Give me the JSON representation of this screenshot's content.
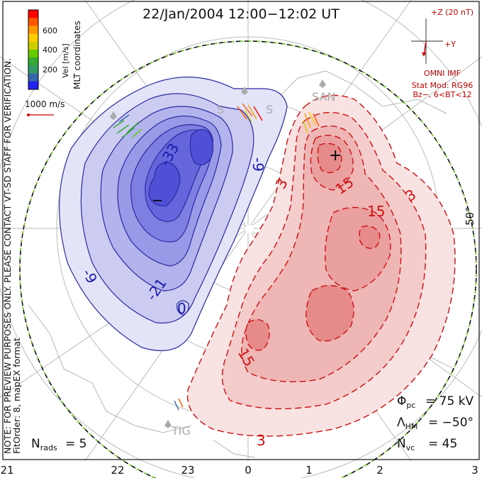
{
  "title": "22/Jan/2004 12:00−12:02 UT",
  "side_note": "NOTE: FOR PREVIEW PURPOSES ONLY. PLEASE CONTACT VT-SD STAFF FOR VERIFICATION.",
  "fit_label": "FitOrder: 8, mapEX format",
  "coord_label": "MLT coordinates",
  "velocity_scale": {
    "axis_label": "Vel [m/s]",
    "ticks": [
      "600",
      "400",
      "200"
    ],
    "colors": [
      "#ff0000",
      "#ff5500",
      "#ff9900",
      "#ffcc00",
      "#cccc00",
      "#66cc00",
      "#33aa33",
      "#339966",
      "#3366aa",
      "#2222ee"
    ]
  },
  "vector_ref": {
    "label": "1000 m/s",
    "color": "#cc0000"
  },
  "imf": {
    "z_label": "+Z (20 nT)",
    "y_label": "+Y",
    "source": "OMNI IMF",
    "model_line1": "Stat Mod: RG96",
    "model_line2": "Bz−, 6<BT<12",
    "color": "#cc0000"
  },
  "lat_label": "50°",
  "contour_labels": {
    "neg": [
      "-33",
      "-9",
      "-9",
      "-21",
      "0"
    ],
    "pos": [
      "3",
      "15",
      "3",
      "15",
      "15",
      "3"
    ]
  },
  "pole_markers": {
    "min": "−",
    "max": "+"
  },
  "stations": [
    "TIG",
    "S",
    "S",
    "SAN"
  ],
  "stats": {
    "phi_pc": "= 75 kV",
    "lambda_hm": "= −50°",
    "n_vc": "= 45",
    "n_rads": "= 5"
  },
  "mlt_ticks": [
    "21",
    "22",
    "23",
    "0",
    "1",
    "2",
    "3"
  ],
  "colors": {
    "neg_fill": "#9999ee",
    "neg_line": "#1a1aa8",
    "pos_fill": "#ee8888",
    "pos_line": "#cc1111",
    "boundary": "#88cc44"
  }
}
